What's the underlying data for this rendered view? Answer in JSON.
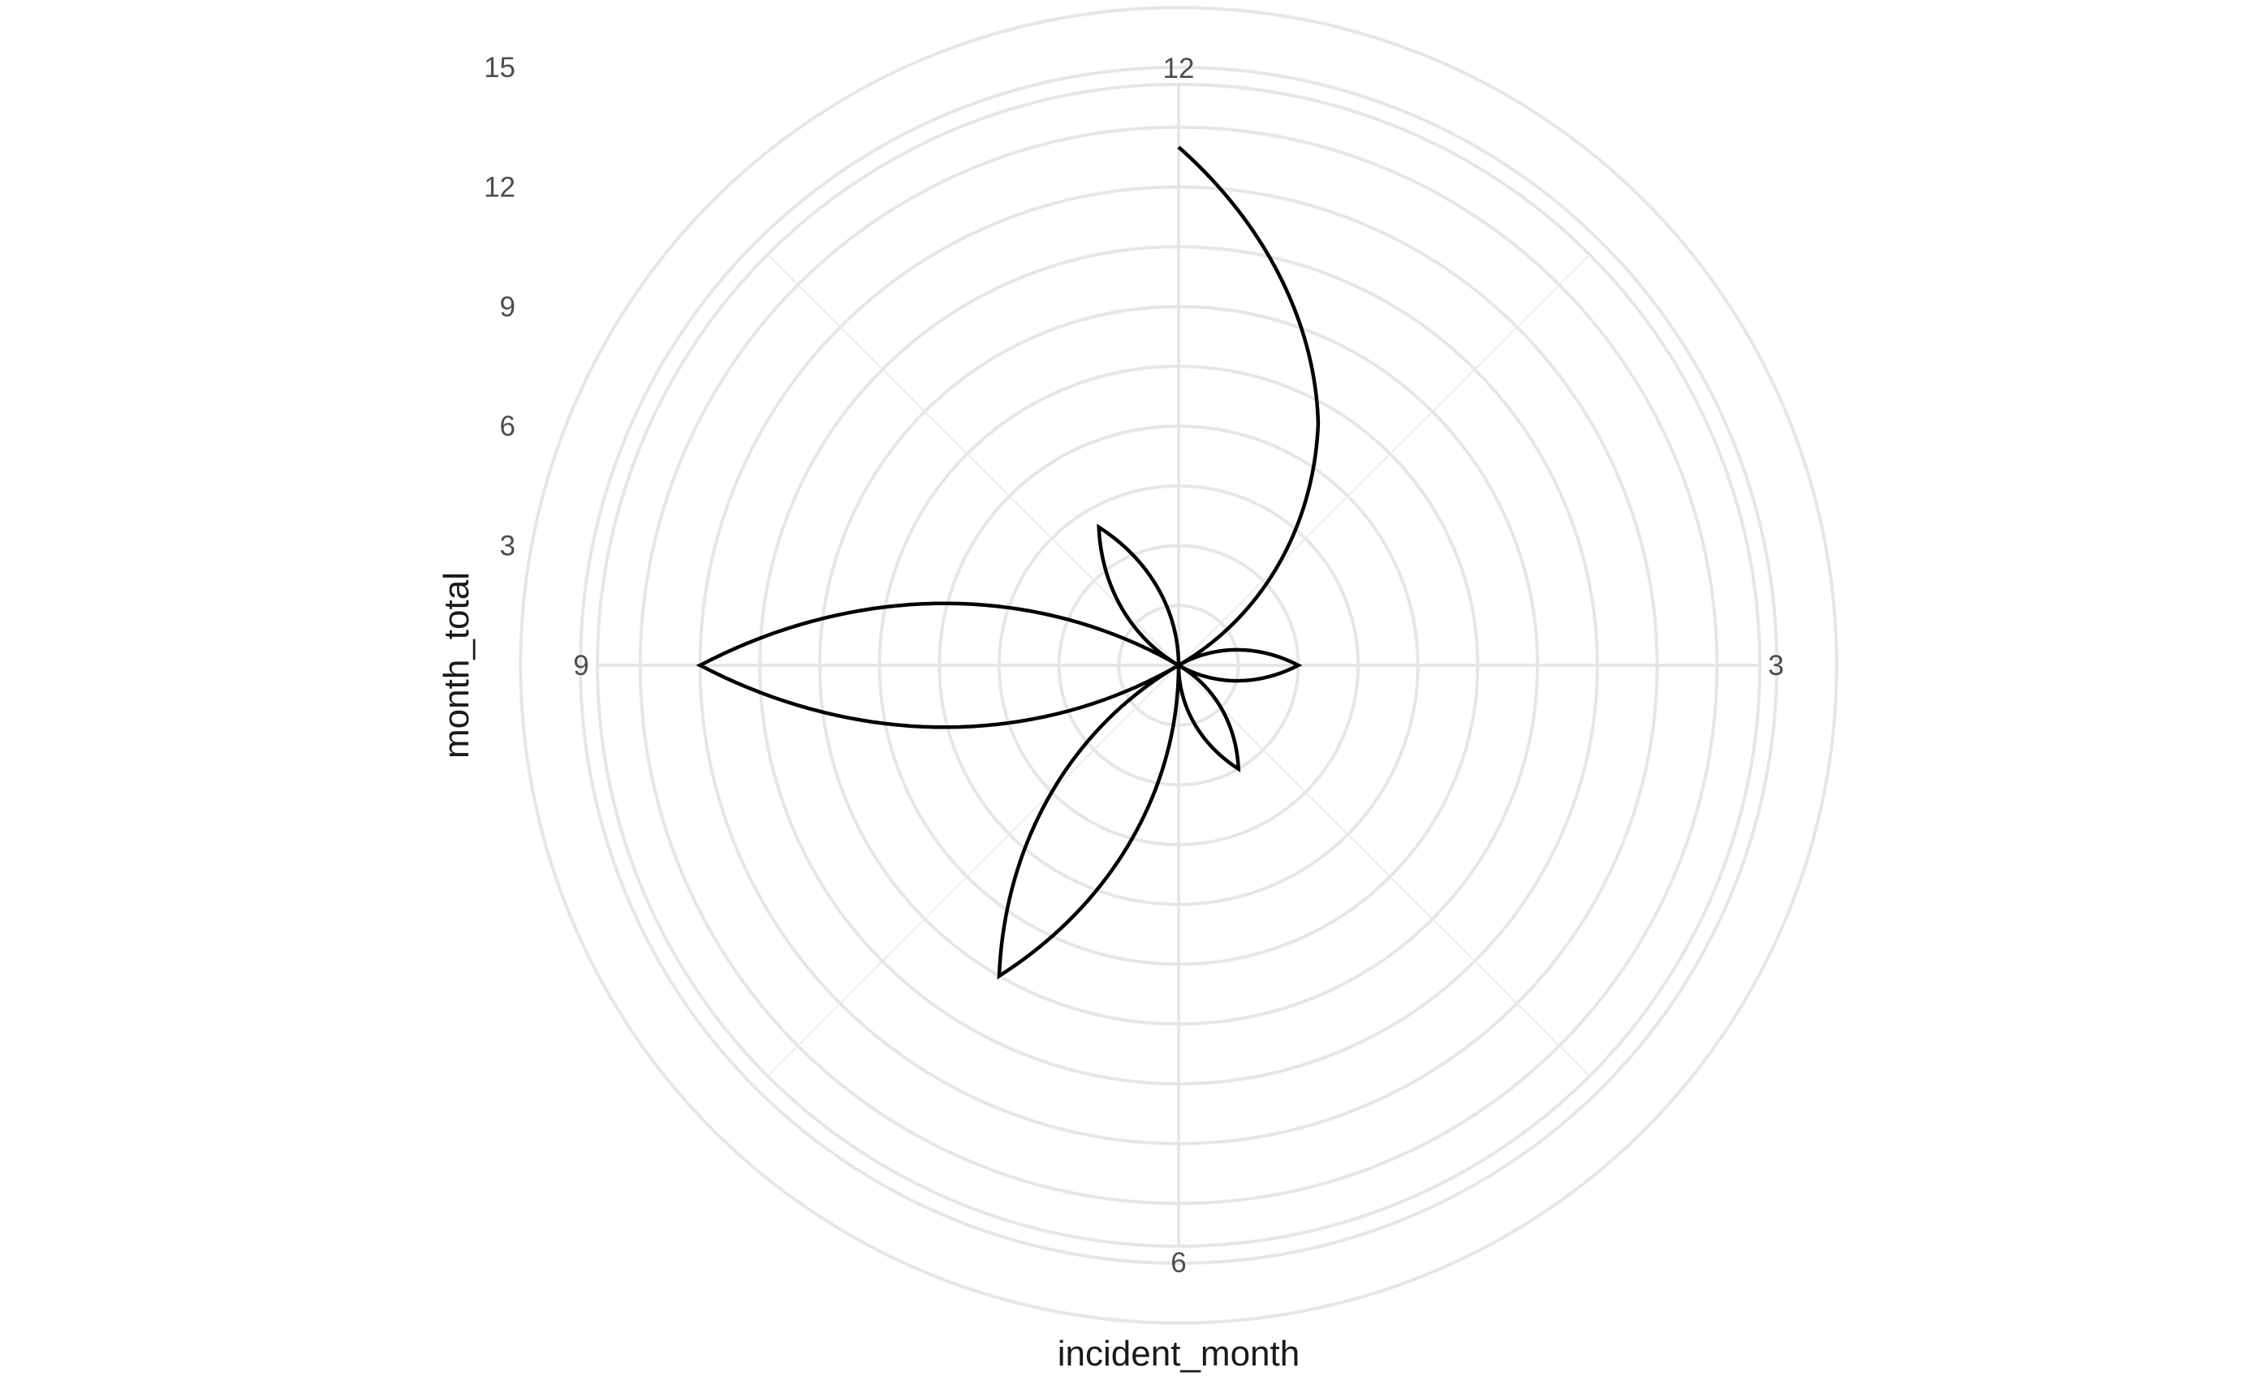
{
  "chart_data": {
    "type": "line",
    "coord": "polar",
    "xlabel": "incident_month",
    "ylabel": "month_total",
    "x_ticks": [
      "12",
      "3",
      "6",
      "9"
    ],
    "y_ticks": [
      "3",
      "6",
      "9",
      "12",
      "15"
    ],
    "xlim": [
      0,
      12
    ],
    "ylim": [
      0,
      18
    ],
    "grid": true,
    "series": [
      {
        "x": [
          0,
          1,
          2,
          3,
          4,
          5,
          6,
          7,
          8,
          9,
          10,
          11,
          12
        ],
        "y": [
          13,
          7,
          0,
          3,
          0,
          3,
          0,
          9,
          0,
          12,
          0,
          4,
          0
        ]
      }
    ],
    "line_color": "#000000",
    "grid_color": "#e6e6e6"
  }
}
